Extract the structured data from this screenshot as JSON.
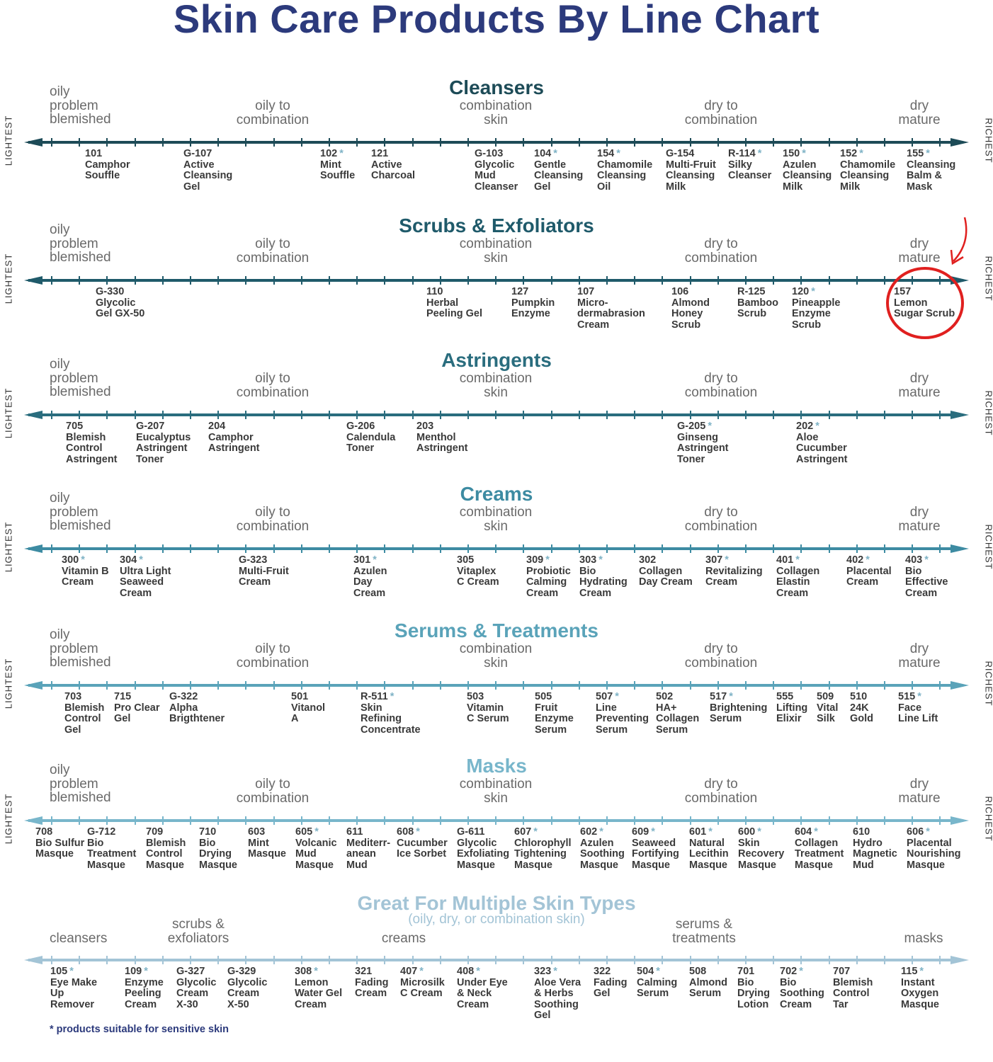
{
  "title": "Skin Care Products By Line Chart",
  "side_labels": {
    "left": "LIGHTEST",
    "right": "RICHEST"
  },
  "axis_labels": [
    "oily\nproblem\nblemished",
    "oily to\ncombination",
    "combination\nskin",
    "dry to\ncombination",
    "dry\nmature"
  ],
  "star_symbol": "*",
  "sections": [
    {
      "title": "Cleansers",
      "color": "#1d4b57",
      "products": [
        {
          "code": "101",
          "star": false,
          "name": "Camphor\nSouffle"
        },
        {
          "code": "G-107",
          "star": false,
          "name": "Active\nCleansing\nGel"
        },
        {
          "code": "102",
          "star": true,
          "name": "Mint\nSouffle"
        },
        {
          "code": "121",
          "star": false,
          "name": "Active\nCharcoal"
        },
        {
          "code": "G-103",
          "star": false,
          "name": "Glycolic\nMud\nCleanser"
        },
        {
          "code": "104",
          "star": true,
          "name": "Gentle\nCleansing\nGel"
        },
        {
          "code": "154",
          "star": true,
          "name": "Chamomile\nCleansing\nOil"
        },
        {
          "code": "G-154",
          "star": false,
          "name": "Multi-Fruit\nCleansing\nMilk"
        },
        {
          "code": "R-114",
          "star": true,
          "name": "Silky\nCleanser"
        },
        {
          "code": "150",
          "star": true,
          "name": "Azulen\nCleansing\nMilk"
        },
        {
          "code": "152",
          "star": true,
          "name": "Chamomile\nCleansing\nMilk"
        },
        {
          "code": "155",
          "star": true,
          "name": "Cleansing\nBalm &\nMask"
        }
      ]
    },
    {
      "title": "Scrubs & Exfoliators",
      "color": "#1f5a6a",
      "highlight_index": 7,
      "highlight_color": "#e0201f",
      "products": [
        {
          "code": "G-330",
          "star": false,
          "name": "Glycolic\nGel GX-50"
        },
        {
          "code": "110",
          "star": false,
          "name": "Herbal\nPeeling Gel"
        },
        {
          "code": "127",
          "star": false,
          "name": "Pumpkin\nEnzyme"
        },
        {
          "code": "107",
          "star": false,
          "name": "Micro-\ndermabrasion\nCream"
        },
        {
          "code": "106",
          "star": false,
          "name": "Almond\nHoney\nScrub"
        },
        {
          "code": "R-125",
          "star": false,
          "name": "Bamboo\nScrub"
        },
        {
          "code": "120",
          "star": true,
          "name": "Pineapple\nEnzyme\nScrub"
        },
        {
          "code": "157",
          "star": false,
          "name": "Lemon\nSugar Scrub"
        }
      ]
    },
    {
      "title": "Astringents",
      "color": "#2a6d7e",
      "products": [
        {
          "code": "705",
          "star": false,
          "name": "Blemish\nControl\nAstringent"
        },
        {
          "code": "G-207",
          "star": false,
          "name": "Eucalyptus\nAstringent\nToner"
        },
        {
          "code": "204",
          "star": false,
          "name": "Camphor\nAstringent"
        },
        {
          "code": "G-206",
          "star": false,
          "name": "Calendula\nToner"
        },
        {
          "code": "203",
          "star": false,
          "name": "Menthol\nAstringent"
        },
        {
          "code": "G-205",
          "star": true,
          "name": "Ginseng\nAstringent\nToner"
        },
        {
          "code": "202",
          "star": true,
          "name": "Aloe\nCucumber\nAstringent"
        }
      ]
    },
    {
      "title": "Creams",
      "color": "#3d8ba2",
      "products": [
        {
          "code": "300",
          "star": true,
          "name": "Vitamin B\nCream"
        },
        {
          "code": "304",
          "star": true,
          "name": "Ultra Light\nSeaweed\nCream"
        },
        {
          "code": "G-323",
          "star": false,
          "name": "Multi-Fruit\nCream"
        },
        {
          "code": "301",
          "star": true,
          "name": "Azulen\nDay\nCream"
        },
        {
          "code": "305",
          "star": false,
          "name": "Vitaplex\nC Cream"
        },
        {
          "code": "309",
          "star": true,
          "name": "Probiotic\nCalming\nCream"
        },
        {
          "code": "303",
          "star": true,
          "name": "Bio\nHydrating\nCream"
        },
        {
          "code": "302",
          "star": false,
          "name": "Collagen\nDay Cream"
        },
        {
          "code": "307",
          "star": true,
          "name": "Revitalizing\nCream"
        },
        {
          "code": "401",
          "star": true,
          "name": "Collagen\nElastin\nCream"
        },
        {
          "code": "402",
          "star": true,
          "name": "Placental\nCream"
        },
        {
          "code": "403",
          "star": true,
          "name": "Bio\nEffective\nCream"
        }
      ]
    },
    {
      "title": "Serums & Treatments",
      "color": "#5aa3b9",
      "products": [
        {
          "code": "703",
          "star": false,
          "name": "Blemish\nControl\nGel"
        },
        {
          "code": "715",
          "star": false,
          "name": "Pro Clear\nGel"
        },
        {
          "code": "G-322",
          "star": false,
          "name": "Alpha\nBrigthtener"
        },
        {
          "code": "501",
          "star": false,
          "name": "Vitanol\nA"
        },
        {
          "code": "R-511",
          "star": true,
          "name": "Skin\nRefining\nConcentrate"
        },
        {
          "code": "503",
          "star": false,
          "name": "Vitamin\nC Serum"
        },
        {
          "code": "505",
          "star": false,
          "name": "Fruit\nEnzyme\nSerum"
        },
        {
          "code": "507",
          "star": true,
          "name": "Line\nPreventing\nSerum"
        },
        {
          "code": "502",
          "star": false,
          "name": "HA+\nCollagen\nSerum"
        },
        {
          "code": "517",
          "star": true,
          "name": "Brightening\nSerum"
        },
        {
          "code": "555",
          "star": false,
          "name": "Lifting\nElixir"
        },
        {
          "code": "509",
          "star": false,
          "name": "Vital\nSilk"
        },
        {
          "code": "510",
          "star": false,
          "name": "24K\nGold"
        },
        {
          "code": "515",
          "star": true,
          "name": "Face\nLine Lift"
        }
      ]
    },
    {
      "title": "Masks",
      "color": "#78b6cb",
      "products": [
        {
          "code": "708",
          "star": false,
          "name": "Bio Sulfur\nMasque"
        },
        {
          "code": "G-712",
          "star": false,
          "name": "Bio\nTreatment\nMasque"
        },
        {
          "code": "709",
          "star": false,
          "name": "Blemish\nControl\nMasque"
        },
        {
          "code": "710",
          "star": false,
          "name": "Bio\nDrying\nMasque"
        },
        {
          "code": "603",
          "star": false,
          "name": "Mint\nMasque"
        },
        {
          "code": "605",
          "star": true,
          "name": "Volcanic\nMud\nMasque"
        },
        {
          "code": "611",
          "star": false,
          "name": "Mediterr-\nanean\nMud"
        },
        {
          "code": "608",
          "star": true,
          "name": "Cucumber\nIce Sorbet"
        },
        {
          "code": "G-611",
          "star": false,
          "name": "Glycolic\nExfoliating\nMasque"
        },
        {
          "code": "607",
          "star": true,
          "name": "Chlorophyll\nTightening\nMasque"
        },
        {
          "code": "602",
          "star": true,
          "name": "Azulen\nSoothing\nMasque"
        },
        {
          "code": "609",
          "star": true,
          "name": "Seaweed\nFortifying\nMasque"
        },
        {
          "code": "601",
          "star": true,
          "name": "Natural\nLecithin\nMasque"
        },
        {
          "code": "600",
          "star": true,
          "name": "Skin\nRecovery\nMasque"
        },
        {
          "code": "604",
          "star": true,
          "name": "Collagen\nTreatment\nMasque"
        },
        {
          "code": "610",
          "star": false,
          "name": "Hydro\nMagnetic\nMud"
        },
        {
          "code": "606",
          "star": true,
          "name": "Placental\nNourishing\nMasque"
        }
      ]
    },
    {
      "title": "Great For Multiple Skin Types",
      "subtitle": "(oily, dry, or combination skin)",
      "color": "#a3c4d6",
      "axis_labels": [
        "cleansers",
        "scrubs &\nexfoliators",
        "creams",
        "serums &\ntreatments",
        "masks"
      ],
      "products": [
        {
          "code": "105",
          "star": true,
          "name": "Eye Make\nUp\nRemover"
        },
        {
          "code": "109",
          "star": true,
          "name": "Enzyme\nPeeling\nCream"
        },
        {
          "code": "G-327",
          "star": false,
          "name": "Glycolic\nCream\nX-30"
        },
        {
          "code": "G-329",
          "star": false,
          "name": "Glycolic\nCream\nX-50"
        },
        {
          "code": "308",
          "star": true,
          "name": "Lemon\nWater Gel\nCream"
        },
        {
          "code": "321",
          "star": false,
          "name": "Fading\nCream"
        },
        {
          "code": "407",
          "star": true,
          "name": "Microsilk\nC Cream"
        },
        {
          "code": "408",
          "star": true,
          "name": "Under Eye\n& Neck\nCream"
        },
        {
          "code": "323",
          "star": true,
          "name": "Aloe Vera\n& Herbs\nSoothing\nGel"
        },
        {
          "code": "322",
          "star": false,
          "name": "Fading\nGel"
        },
        {
          "code": "504",
          "star": true,
          "name": "Calming\nSerum"
        },
        {
          "code": "508",
          "star": false,
          "name": "Almond\nSerum"
        },
        {
          "code": "701",
          "star": false,
          "name": "Bio\nDrying\nLotion"
        },
        {
          "code": "702",
          "star": true,
          "name": "Bio\nSoothing\nCream"
        },
        {
          "code": "707",
          "star": false,
          "name": "Blemish\nControl\nTar"
        },
        {
          "code": "115",
          "star": true,
          "name": "Instant\nOxygen\nMasque"
        }
      ]
    }
  ],
  "footnote": "* products suitable for sensitive skin"
}
